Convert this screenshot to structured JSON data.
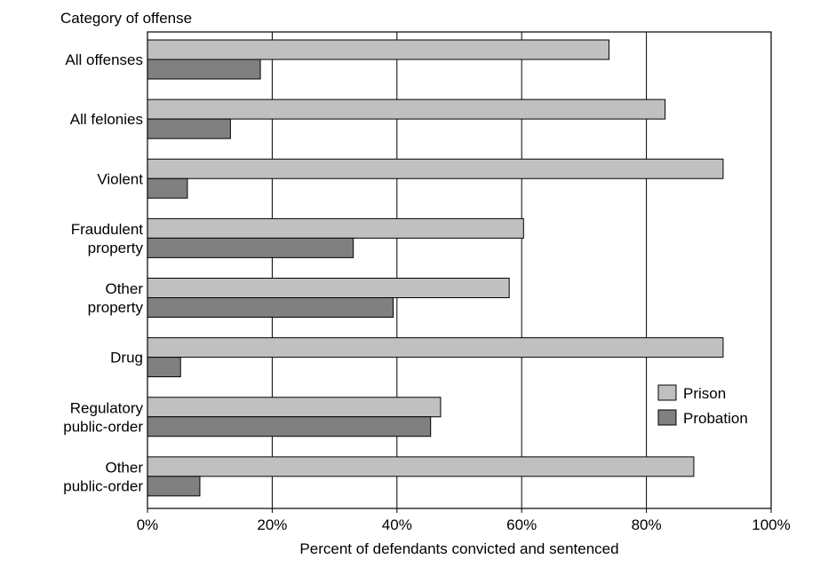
{
  "chart_data": {
    "type": "bar",
    "orientation": "horizontal",
    "title": "",
    "category_axis_label": "Category of offense",
    "xlabel": "Percent of defendants convicted and sentenced",
    "ylabel": "",
    "xlim": [
      0,
      100
    ],
    "x_ticks": [
      0,
      20,
      40,
      60,
      80,
      100
    ],
    "x_tick_labels": [
      "0%",
      "20%",
      "40%",
      "60%",
      "80%",
      "100%"
    ],
    "grid": "vertical gridlines",
    "legend_position": "lower-right, inside plot",
    "categories": [
      [
        "All offenses"
      ],
      [
        "All felonies"
      ],
      [
        "Violent"
      ],
      [
        "Fraudulent",
        "property"
      ],
      [
        "Other",
        "property"
      ],
      [
        "Drug"
      ],
      [
        "Regulatory",
        "public-order"
      ],
      [
        "Other",
        "public-order"
      ]
    ],
    "series": [
      {
        "name": "Prison",
        "color": "#c0c0c0",
        "values": [
          74,
          83,
          92.3,
          60.3,
          58,
          92.3,
          47,
          87.6
        ]
      },
      {
        "name": "Probation",
        "color": "#808080",
        "values": [
          18.1,
          13.3,
          6.4,
          33,
          39.4,
          5.3,
          45.4,
          8.4
        ]
      }
    ]
  }
}
